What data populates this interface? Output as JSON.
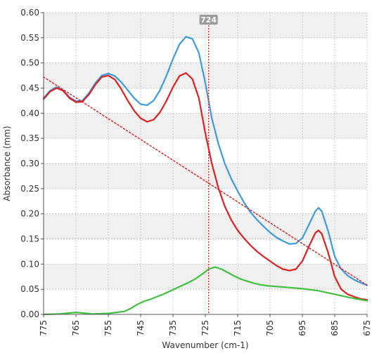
{
  "chart_data": {
    "type": "line",
    "title": "",
    "xlabel": "Wavenumber (cm-1)",
    "ylabel": "Absorbance (mm)",
    "xlim": [
      775,
      675
    ],
    "ylim": [
      0,
      0.6
    ],
    "x_ticks": [
      "775",
      "765",
      "755",
      "745",
      "735",
      "725",
      "715",
      "705",
      "695",
      "685",
      "675"
    ],
    "y_ticks": [
      "0.00",
      "0.05",
      "0.10",
      "0.15",
      "0.20",
      "0.25",
      "0.30",
      "0.35",
      "0.40",
      "0.45",
      "0.50",
      "0.55",
      "0.60"
    ],
    "grid": true,
    "cursor": {
      "x": 724,
      "label": "724"
    },
    "series": [
      {
        "color": "#3a9be0",
        "points": [
          [
            775,
            0.43
          ],
          [
            773,
            0.445
          ],
          [
            771,
            0.452
          ],
          [
            769,
            0.446
          ],
          [
            767,
            0.432
          ],
          [
            765,
            0.424
          ],
          [
            763,
            0.425
          ],
          [
            761,
            0.44
          ],
          [
            759,
            0.46
          ],
          [
            757,
            0.475
          ],
          [
            755,
            0.479
          ],
          [
            753,
            0.474
          ],
          [
            751,
            0.462
          ],
          [
            749,
            0.446
          ],
          [
            747,
            0.43
          ],
          [
            745,
            0.418
          ],
          [
            743,
            0.416
          ],
          [
            741,
            0.425
          ],
          [
            739,
            0.446
          ],
          [
            737,
            0.475
          ],
          [
            735,
            0.508
          ],
          [
            733,
            0.537
          ],
          [
            731,
            0.552
          ],
          [
            729,
            0.548
          ],
          [
            727,
            0.52
          ],
          [
            725,
            0.46
          ],
          [
            723,
            0.39
          ],
          [
            721,
            0.34
          ],
          [
            719,
            0.3
          ],
          [
            717,
            0.27
          ],
          [
            715,
            0.245
          ],
          [
            713,
            0.222
          ],
          [
            711,
            0.203
          ],
          [
            709,
            0.188
          ],
          [
            707,
            0.175
          ],
          [
            705,
            0.163
          ],
          [
            703,
            0.153
          ],
          [
            701,
            0.146
          ],
          [
            699,
            0.14
          ],
          [
            697,
            0.141
          ],
          [
            695,
            0.152
          ],
          [
            693,
            0.178
          ],
          [
            691,
            0.205
          ],
          [
            690,
            0.212
          ],
          [
            689,
            0.205
          ],
          [
            687,
            0.165
          ],
          [
            685,
            0.115
          ],
          [
            683,
            0.09
          ],
          [
            681,
            0.077
          ],
          [
            679,
            0.069
          ],
          [
            677,
            0.063
          ],
          [
            675,
            0.058
          ]
        ]
      },
      {
        "color": "#e02020",
        "points": [
          [
            775,
            0.428
          ],
          [
            773,
            0.443
          ],
          [
            771,
            0.45
          ],
          [
            769,
            0.445
          ],
          [
            767,
            0.43
          ],
          [
            765,
            0.422
          ],
          [
            763,
            0.423
          ],
          [
            761,
            0.437
          ],
          [
            759,
            0.457
          ],
          [
            757,
            0.472
          ],
          [
            755,
            0.475
          ],
          [
            753,
            0.467
          ],
          [
            751,
            0.448
          ],
          [
            749,
            0.425
          ],
          [
            747,
            0.405
          ],
          [
            745,
            0.39
          ],
          [
            743,
            0.383
          ],
          [
            741,
            0.387
          ],
          [
            739,
            0.402
          ],
          [
            737,
            0.425
          ],
          [
            735,
            0.452
          ],
          [
            733,
            0.474
          ],
          [
            731,
            0.48
          ],
          [
            729,
            0.468
          ],
          [
            727,
            0.43
          ],
          [
            725,
            0.36
          ],
          [
            723,
            0.3
          ],
          [
            721,
            0.252
          ],
          [
            719,
            0.215
          ],
          [
            717,
            0.188
          ],
          [
            715,
            0.167
          ],
          [
            713,
            0.151
          ],
          [
            711,
            0.137
          ],
          [
            709,
            0.125
          ],
          [
            707,
            0.115
          ],
          [
            705,
            0.106
          ],
          [
            703,
            0.097
          ],
          [
            701,
            0.09
          ],
          [
            699,
            0.087
          ],
          [
            697,
            0.09
          ],
          [
            695,
            0.106
          ],
          [
            693,
            0.135
          ],
          [
            691,
            0.162
          ],
          [
            690,
            0.167
          ],
          [
            689,
            0.16
          ],
          [
            687,
            0.122
          ],
          [
            685,
            0.075
          ],
          [
            683,
            0.05
          ],
          [
            681,
            0.04
          ],
          [
            679,
            0.035
          ],
          [
            677,
            0.031
          ],
          [
            675,
            0.029
          ]
        ]
      },
      {
        "color": "#40c040",
        "points": [
          [
            775,
            0.0
          ],
          [
            770,
            0.001
          ],
          [
            765,
            0.004
          ],
          [
            760,
            0.001
          ],
          [
            755,
            0.002
          ],
          [
            750,
            0.006
          ],
          [
            748,
            0.012
          ],
          [
            746,
            0.02
          ],
          [
            744,
            0.026
          ],
          [
            742,
            0.03
          ],
          [
            740,
            0.035
          ],
          [
            738,
            0.04
          ],
          [
            736,
            0.046
          ],
          [
            734,
            0.052
          ],
          [
            732,
            0.058
          ],
          [
            730,
            0.064
          ],
          [
            728,
            0.071
          ],
          [
            726,
            0.08
          ],
          [
            724,
            0.09
          ],
          [
            722,
            0.094
          ],
          [
            720,
            0.09
          ],
          [
            718,
            0.083
          ],
          [
            716,
            0.076
          ],
          [
            714,
            0.07
          ],
          [
            712,
            0.066
          ],
          [
            710,
            0.062
          ],
          [
            708,
            0.059
          ],
          [
            706,
            0.057
          ],
          [
            704,
            0.056
          ],
          [
            700,
            0.054
          ],
          [
            695,
            0.051
          ],
          [
            690,
            0.047
          ],
          [
            685,
            0.04
          ],
          [
            680,
            0.033
          ],
          [
            675,
            0.027
          ]
        ]
      },
      {
        "color": "#e02020",
        "dashed": true,
        "points": [
          [
            775,
            0.472
          ],
          [
            675,
            0.058
          ]
        ]
      }
    ]
  }
}
